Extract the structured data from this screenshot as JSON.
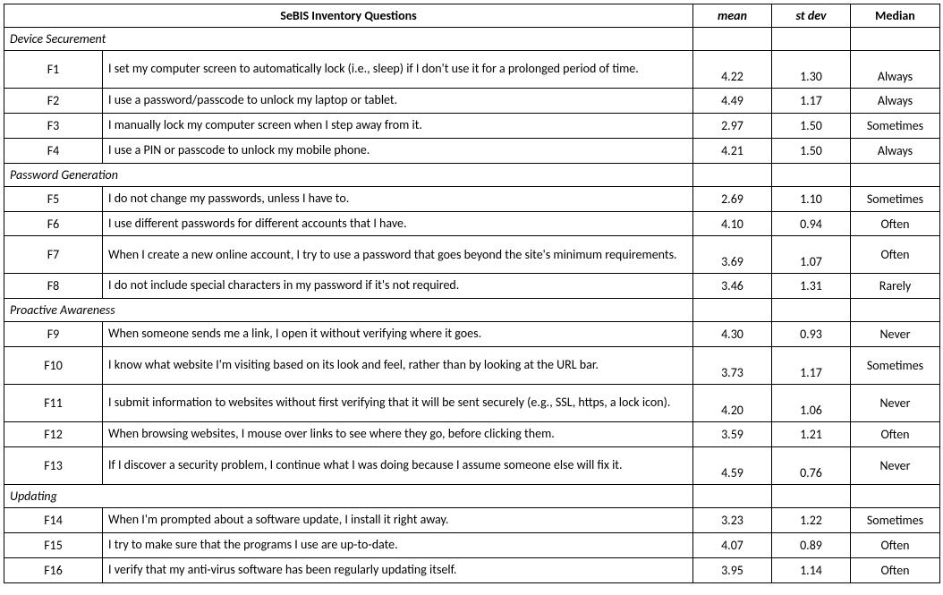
{
  "headers": {
    "questions": "SeBIS Inventory Questions",
    "mean": "mean",
    "stdev": "st dev",
    "median": "Median"
  },
  "sections": [
    {
      "title": "Device Securement",
      "rows": [
        {
          "id": "F1",
          "q": "I set my computer screen to automatically lock (i.e., sleep) if I don't use it for a prolonged period of time.",
          "mean": "4.22",
          "stdev": "1.30",
          "median": "Always",
          "tall": true,
          "valign": "bottom"
        },
        {
          "id": "F2",
          "q": "I use a password/passcode to unlock my laptop or tablet.",
          "mean": "4.49",
          "stdev": "1.17",
          "median": "Always",
          "tall": false,
          "valign": "middle"
        },
        {
          "id": "F3",
          "q": "I manually lock my computer screen when I step away from it.",
          "mean": "2.97",
          "stdev": "1.50",
          "median": "Sometimes",
          "tall": false,
          "valign": "middle"
        },
        {
          "id": "F4",
          "q": "I use a PIN or passcode to unlock my mobile phone.",
          "mean": "4.21",
          "stdev": "1.50",
          "median": "Always",
          "tall": false,
          "valign": "middle"
        }
      ]
    },
    {
      "title": "Password Generation",
      "rows": [
        {
          "id": "F5",
          "q": "I do not change my passwords, unless I have to.",
          "mean": "2.69",
          "stdev": "1.10",
          "median": "Sometimes",
          "tall": false,
          "valign": "middle"
        },
        {
          "id": "F6",
          "q": "I use different passwords for different accounts that I have.",
          "mean": "4.10",
          "stdev": "0.94",
          "median": "Often",
          "tall": false,
          "valign": "middle"
        },
        {
          "id": "F7",
          "q": "When I create a new online account, I try to use a password that goes beyond the site's minimum requirements.",
          "mean": "3.69",
          "stdev": "1.07",
          "median": "Often",
          "tall": true,
          "valign": "bottom_mid"
        },
        {
          "id": "F8",
          "q": "I do not include special characters in my password if it's not required.",
          "mean": "3.46",
          "stdev": "1.31",
          "median": "Rarely",
          "tall": false,
          "valign": "middle"
        }
      ]
    },
    {
      "title": "Proactive Awareness",
      "rows": [
        {
          "id": "F9",
          "q": "When someone sends me a link, I open it without verifying where it goes.",
          "mean": "4.30",
          "stdev": "0.93",
          "median": "Never",
          "tall": false,
          "valign": "middle"
        },
        {
          "id": "F10",
          "q": "I know what website I'm visiting based on its look and feel, rather than by looking at the URL bar.",
          "mean": "3.73",
          "stdev": "1.17",
          "median": "Sometimes",
          "tall": true,
          "valign": "bottom_mid"
        },
        {
          "id": "F11",
          "q": "I submit information to websites without first verifying that it will be sent securely (e.g., SSL, https, a lock icon).",
          "mean": "4.20",
          "stdev": "1.06",
          "median": "Never",
          "tall": true,
          "valign": "bottom_mid"
        },
        {
          "id": "F12",
          "q": "When browsing websites, I mouse over links to see where they go, before clicking them.",
          "mean": "3.59",
          "stdev": "1.21",
          "median": "Often",
          "tall": false,
          "valign": "middle"
        },
        {
          "id": "F13",
          "q": "If I discover a security problem, I continue what I was doing because I assume someone else will fix it.",
          "mean": "4.59",
          "stdev": "0.76",
          "median": "Never",
          "tall": true,
          "valign": "bottom_mid"
        }
      ]
    },
    {
      "title": "Updating",
      "rows": [
        {
          "id": "F14",
          "q": "When I'm prompted about a software update, I install it right away.",
          "mean": "3.23",
          "stdev": "1.22",
          "median": "Sometimes",
          "tall": false,
          "valign": "middle"
        },
        {
          "id": "F15",
          "q": "I try to make sure that the programs I use are up-to-date.",
          "mean": "4.07",
          "stdev": "0.89",
          "median": "Often",
          "tall": false,
          "valign": "middle"
        },
        {
          "id": "F16",
          "q": "I verify that my anti-virus software has been regularly updating itself.",
          "mean": "3.95",
          "stdev": "1.14",
          "median": "Often",
          "tall": false,
          "valign": "middle"
        }
      ]
    }
  ]
}
